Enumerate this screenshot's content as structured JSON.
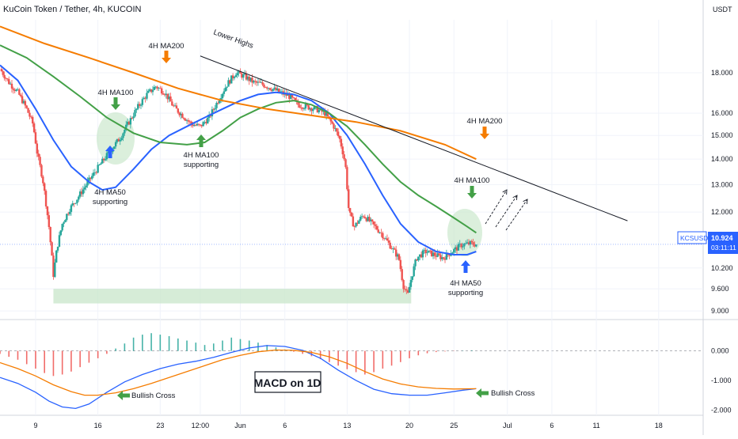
{
  "header": {
    "title": "KuCoin Token / Tether, 4h, KUCOIN"
  },
  "price_axis": {
    "unit": "USDT"
  },
  "price_tag": {
    "symbol": "KCSUSDT",
    "price": "10.924",
    "countdown": "03:11:11"
  },
  "macd_title": "MACD on 1D",
  "annotations": {
    "lower_highs": "Lower Highs",
    "ma200_top": "4H MA200",
    "ma100_left": "4H MA100",
    "ma50_left": "4H MA50",
    "supporting_left": "supporting",
    "ma100_mid": "4H MA100",
    "supporting_mid": "supporting",
    "ma200_right": "4H MA200",
    "ma100_right": "4H MA100",
    "ma50_right": "4H MA50",
    "supporting_right": "supporting",
    "bullish_cross_left": "Bullish Cross",
    "bullish_cross_right": "Bullish Cross"
  },
  "colors": {
    "ma50": "#2962ff",
    "ma100": "#43a047",
    "ma200": "#f57c00",
    "up": "#26a69a",
    "down": "#ef5350",
    "support_zone": "#c8e6c9"
  },
  "chart_data": [
    {
      "type": "line",
      "title": "KuCoin Token / Tether, 4h, KUCOIN",
      "y_scale": "log",
      "ylim": [
        8.9,
        21.0
      ],
      "y_ticks": [
        "18.000",
        "16.000",
        "15.000",
        "14.000",
        "13.000",
        "12.000",
        "10.200",
        "9.600",
        "9.000"
      ],
      "y_tick_values": [
        18,
        16,
        15,
        14,
        13,
        12,
        10.2,
        9.6,
        9.0
      ],
      "x_ticks": [
        "9",
        "16",
        "23",
        "12:00",
        "Jun",
        "6",
        "13",
        "20",
        "25",
        "Jul",
        "6",
        "11",
        "18"
      ],
      "x_tick_days": [
        9,
        16,
        23,
        27.5,
        32,
        37,
        44,
        51,
        56,
        62,
        67,
        72,
        79
      ],
      "x_start_day": 5,
      "x_end_day": 84,
      "last_day": 58.5,
      "last_price": 10.924,
      "price_path": [
        [
          5,
          18.2
        ],
        [
          6,
          17.5
        ],
        [
          7,
          17.0
        ],
        [
          8,
          16.2
        ],
        [
          8.7,
          15.5
        ],
        [
          9.2,
          14.2
        ],
        [
          9.8,
          13.2
        ],
        [
          10.5,
          11.5
        ],
        [
          11,
          10.0
        ],
        [
          11.4,
          10.8
        ],
        [
          12,
          11.6
        ],
        [
          12.8,
          12.1
        ],
        [
          13.7,
          12.5
        ],
        [
          14.5,
          12.9
        ],
        [
          15.5,
          13.4
        ],
        [
          16.5,
          13.9
        ],
        [
          17.5,
          14.4
        ],
        [
          18.5,
          14.9
        ],
        [
          19.5,
          15.6
        ],
        [
          20.5,
          16.3
        ],
        [
          21.5,
          16.9
        ],
        [
          22.5,
          17.3
        ],
        [
          23.5,
          17.0
        ],
        [
          24.5,
          16.3
        ],
        [
          25.5,
          15.9
        ],
        [
          26.5,
          15.5
        ],
        [
          27.5,
          15.4
        ],
        [
          28.5,
          15.8
        ],
        [
          29.5,
          16.6
        ],
        [
          30.5,
          17.4
        ],
        [
          31.5,
          18.0
        ],
        [
          32.5,
          17.8
        ],
        [
          33.5,
          17.5
        ],
        [
          34.5,
          17.4
        ],
        [
          35.5,
          17.2
        ],
        [
          36.5,
          17.0
        ],
        [
          37.5,
          16.8
        ],
        [
          38.5,
          16.4
        ],
        [
          39.5,
          16.3
        ],
        [
          40.5,
          16.2
        ],
        [
          41.5,
          16.0
        ],
        [
          42.5,
          15.4
        ],
        [
          43.2,
          14.8
        ],
        [
          43.8,
          13.8
        ],
        [
          44.2,
          12.0
        ],
        [
          44.8,
          11.5
        ],
        [
          45.8,
          11.9
        ],
        [
          46.8,
          11.6
        ],
        [
          47.8,
          11.3
        ],
        [
          48.8,
          10.9
        ],
        [
          49.8,
          10.5
        ],
        [
          50.3,
          9.7
        ],
        [
          50.8,
          9.4
        ],
        [
          51.2,
          9.9
        ],
        [
          51.8,
          10.5
        ],
        [
          52.8,
          10.7
        ],
        [
          53.8,
          10.6
        ],
        [
          54.8,
          10.5
        ],
        [
          55.8,
          10.7
        ],
        [
          56.8,
          10.9
        ],
        [
          57.8,
          10.95
        ],
        [
          58.5,
          10.924
        ]
      ],
      "series": [
        {
          "name": "4H MA50",
          "points": [
            [
              5,
              18.4
            ],
            [
              7,
              17.6
            ],
            [
              9,
              16.2
            ],
            [
              11,
              14.8
            ],
            [
              13,
              13.7
            ],
            [
              15,
              13.1
            ],
            [
              16.5,
              12.8
            ],
            [
              18,
              12.9
            ],
            [
              20,
              13.6
            ],
            [
              22,
              14.4
            ],
            [
              24,
              15.0
            ],
            [
              26,
              15.4
            ],
            [
              28,
              15.8
            ],
            [
              30,
              16.2
            ],
            [
              32,
              16.6
            ],
            [
              34,
              16.9
            ],
            [
              36,
              17.0
            ],
            [
              38,
              16.9
            ],
            [
              40,
              16.6
            ],
            [
              42,
              16.0
            ],
            [
              44,
              15.0
            ],
            [
              46,
              13.8
            ],
            [
              48,
              12.6
            ],
            [
              50,
              11.6
            ],
            [
              52,
              11.0
            ],
            [
              54,
              10.7
            ],
            [
              56,
              10.6
            ],
            [
              57.5,
              10.6
            ],
            [
              58.5,
              10.7
            ]
          ]
        },
        {
          "name": "4H MA100",
          "points": [
            [
              5,
              19.5
            ],
            [
              8,
              18.8
            ],
            [
              11,
              17.8
            ],
            [
              14,
              16.8
            ],
            [
              17,
              15.8
            ],
            [
              20,
              15.1
            ],
            [
              23,
              14.7
            ],
            [
              26,
              14.6
            ],
            [
              28,
              14.7
            ],
            [
              30,
              15.2
            ],
            [
              32,
              15.8
            ],
            [
              34,
              16.2
            ],
            [
              36,
              16.5
            ],
            [
              38,
              16.6
            ],
            [
              40,
              16.4
            ],
            [
              42,
              16.0
            ],
            [
              44,
              15.4
            ],
            [
              46,
              14.6
            ],
            [
              48,
              13.8
            ],
            [
              50,
              13.1
            ],
            [
              52,
              12.6
            ],
            [
              54,
              12.2
            ],
            [
              56,
              11.8
            ],
            [
              57.5,
              11.5
            ],
            [
              58.5,
              11.3
            ]
          ]
        },
        {
          "name": "4H MA200",
          "points": [
            [
              5,
              20.6
            ],
            [
              10,
              19.6
            ],
            [
              15,
              18.8
            ],
            [
              20,
              18.0
            ],
            [
              25,
              17.2
            ],
            [
              30,
              16.6
            ],
            [
              35,
              16.2
            ],
            [
              40,
              15.9
            ],
            [
              45,
              15.6
            ],
            [
              50,
              15.2
            ],
            [
              55,
              14.6
            ],
            [
              58.5,
              14.0
            ]
          ]
        }
      ],
      "lower_highs_line": [
        [
          27.5,
          18.9
        ],
        [
          75.5,
          11.7
        ]
      ],
      "support_zone": [
        9.2,
        9.6
      ]
    },
    {
      "type": "bar",
      "title": "MACD on 1D",
      "ylim": [
        -2.1,
        0.9
      ],
      "y_ticks": [
        "0.000",
        "-1.000",
        "-2.000"
      ],
      "y_tick_values": [
        0,
        -1,
        -2
      ],
      "histogram": [
        [
          5,
          -0.1
        ],
        [
          6,
          -0.2
        ],
        [
          7,
          -0.3
        ],
        [
          8,
          -0.45
        ],
        [
          9,
          -0.6
        ],
        [
          10,
          -0.75
        ],
        [
          11,
          -0.85
        ],
        [
          12,
          -0.8
        ],
        [
          13,
          -0.7
        ],
        [
          14,
          -0.55
        ],
        [
          15,
          -0.4
        ],
        [
          16,
          -0.25
        ],
        [
          17,
          -0.1
        ],
        [
          18,
          0.08
        ],
        [
          19,
          0.25
        ],
        [
          20,
          0.45
        ],
        [
          21,
          0.55
        ],
        [
          22,
          0.6
        ],
        [
          23,
          0.55
        ],
        [
          24,
          0.5
        ],
        [
          25,
          0.42
        ],
        [
          26,
          0.35
        ],
        [
          27,
          0.28
        ],
        [
          28,
          0.2
        ],
        [
          29,
          0.25
        ],
        [
          30,
          0.35
        ],
        [
          31,
          0.45
        ],
        [
          32,
          0.4
        ],
        [
          33,
          0.35
        ],
        [
          34,
          0.28
        ],
        [
          35,
          0.2
        ],
        [
          36,
          0.12
        ],
        [
          37,
          0.05
        ],
        [
          38,
          -0.03
        ],
        [
          39,
          -0.1
        ],
        [
          40,
          -0.18
        ],
        [
          41,
          -0.28
        ],
        [
          42,
          -0.38
        ],
        [
          43,
          -0.5
        ],
        [
          44,
          -0.62
        ],
        [
          45,
          -0.72
        ],
        [
          46,
          -0.8
        ],
        [
          47,
          -0.72
        ],
        [
          48,
          -0.6
        ],
        [
          49,
          -0.5
        ],
        [
          50,
          -0.38
        ],
        [
          51,
          -0.25
        ],
        [
          52,
          -0.15
        ],
        [
          53,
          -0.08
        ],
        [
          54,
          -0.04
        ],
        [
          55,
          -0.02
        ],
        [
          56,
          -0.01
        ],
        [
          57,
          0.01
        ],
        [
          58,
          0.02
        ]
      ],
      "series": [
        {
          "name": "MACD",
          "points": [
            [
              5,
              -0.9
            ],
            [
              7,
              -1.1
            ],
            [
              9,
              -1.4
            ],
            [
              10.5,
              -1.7
            ],
            [
              12,
              -1.9
            ],
            [
              13.5,
              -1.95
            ],
            [
              15,
              -1.8
            ],
            [
              17,
              -1.4
            ],
            [
              19,
              -1.05
            ],
            [
              21,
              -0.8
            ],
            [
              23,
              -0.6
            ],
            [
              25,
              -0.45
            ],
            [
              27,
              -0.35
            ],
            [
              29,
              -0.22
            ],
            [
              31,
              -0.05
            ],
            [
              33,
              0.1
            ],
            [
              35,
              0.18
            ],
            [
              37,
              0.15
            ],
            [
              39,
              0.02
            ],
            [
              41,
              -0.25
            ],
            [
              43,
              -0.65
            ],
            [
              45,
              -1.0
            ],
            [
              47,
              -1.3
            ],
            [
              49,
              -1.45
            ],
            [
              51,
              -1.5
            ],
            [
              53,
              -1.5
            ],
            [
              55,
              -1.42
            ],
            [
              57,
              -1.33
            ],
            [
              58.5,
              -1.28
            ]
          ]
        },
        {
          "name": "Signal",
          "points": [
            [
              5,
              -0.4
            ],
            [
              7,
              -0.6
            ],
            [
              9,
              -0.85
            ],
            [
              11,
              -1.15
            ],
            [
              13,
              -1.38
            ],
            [
              14.5,
              -1.5
            ],
            [
              16,
              -1.5
            ],
            [
              18,
              -1.42
            ],
            [
              20,
              -1.28
            ],
            [
              22,
              -1.1
            ],
            [
              24,
              -0.9
            ],
            [
              26,
              -0.7
            ],
            [
              28,
              -0.5
            ],
            [
              30,
              -0.3
            ],
            [
              32,
              -0.15
            ],
            [
              34,
              -0.03
            ],
            [
              36,
              0.03
            ],
            [
              38,
              0.02
            ],
            [
              40,
              -0.05
            ],
            [
              42,
              -0.2
            ],
            [
              44,
              -0.42
            ],
            [
              46,
              -0.7
            ],
            [
              48,
              -0.95
            ],
            [
              50,
              -1.12
            ],
            [
              52,
              -1.22
            ],
            [
              54,
              -1.27
            ],
            [
              56,
              -1.29
            ],
            [
              58.5,
              -1.28
            ]
          ]
        }
      ]
    }
  ]
}
